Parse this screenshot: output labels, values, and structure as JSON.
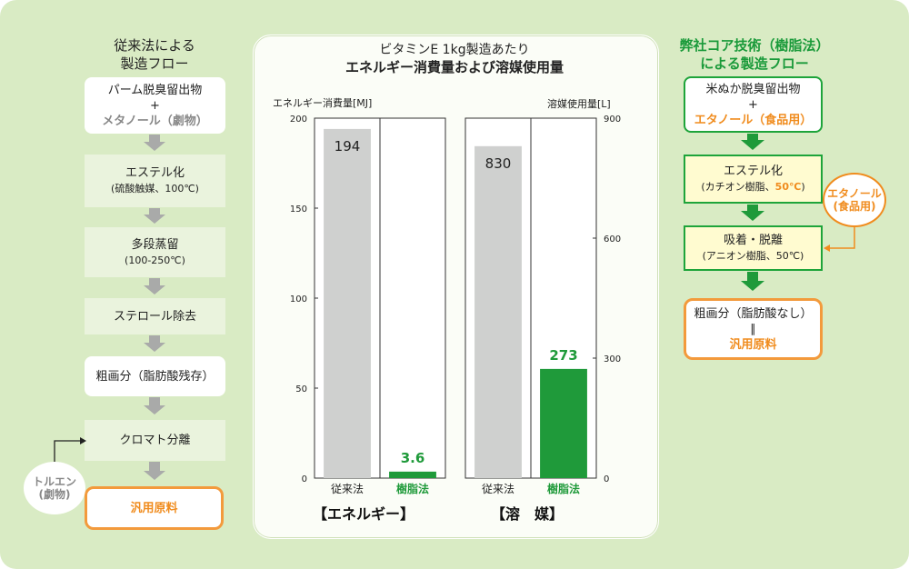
{
  "left_flow": {
    "title_line1": "従来法による",
    "title_line2": "製造フロー",
    "steps": [
      {
        "line1": "パーム脱臭留出物",
        "line2": "+",
        "line3": "メタノール（劇物）"
      },
      {
        "line1": "エステル化",
        "line2": "(硫酸触媒、100℃)"
      },
      {
        "line1": "多段蒸留",
        "line2": "(100-250℃)"
      },
      {
        "line1": "ステロール除去"
      },
      {
        "line1": "粗画分（脂肪酸残存）"
      },
      {
        "line1": "クロマト分離"
      },
      {
        "line1": "汎用原料"
      }
    ],
    "side_input": {
      "line1": "トルエン",
      "line2": "(劇物)"
    }
  },
  "chart_panel": {
    "title_line1": "ビタミンE 1kg製造あたり",
    "title_line2": "エネルギー消費量および溶媒使用量"
  },
  "chart_data": [
    {
      "type": "bar",
      "title": "【エネルギー】",
      "ylabel": "エネルギー消費量[MJ]",
      "categories": [
        "従来法",
        "樹脂法"
      ],
      "values": [
        194,
        3.6
      ],
      "value_labels": [
        "194",
        "3.6"
      ],
      "ylim": [
        0,
        200
      ],
      "yticks": [
        0,
        50,
        100,
        150,
        200
      ],
      "colors": [
        "#cfd0cf",
        "#1f9a3a"
      ]
    },
    {
      "type": "bar",
      "title": "【溶　媒】",
      "ylabel": "溶媒使用量[L]",
      "categories": [
        "従来法",
        "樹脂法"
      ],
      "values": [
        830,
        273
      ],
      "value_labels": [
        "830",
        "273"
      ],
      "ylim": [
        0,
        900
      ],
      "yticks": [
        0,
        300,
        600,
        900
      ],
      "colors": [
        "#cfd0cf",
        "#1f9a3a"
      ]
    }
  ],
  "right_flow": {
    "title_line1": "弊社コア技術（樹脂法）",
    "title_line2": "による製造フロー",
    "steps": [
      {
        "line1": "米ぬか脱臭留出物",
        "line2": "+",
        "line3": "エタノール（食品用）"
      },
      {
        "line1": "エステル化",
        "line2a": "(カチオン樹脂、",
        "line2b": "50℃",
        "line2c": ")"
      },
      {
        "line1": "吸着・脱離",
        "line2": "(アニオン樹脂、50℃)"
      },
      {
        "line1": "粗画分（脂肪酸なし）",
        "line2": "∥",
        "line3": "汎用原料"
      }
    ],
    "side_input": {
      "line1": "エタノール",
      "line2": "(食品用)"
    }
  },
  "colors": {
    "background": "#d9ebc4",
    "green": "#1f9a3a",
    "orange": "#f08c1e",
    "gray_arrow": "#a9aaa9"
  }
}
